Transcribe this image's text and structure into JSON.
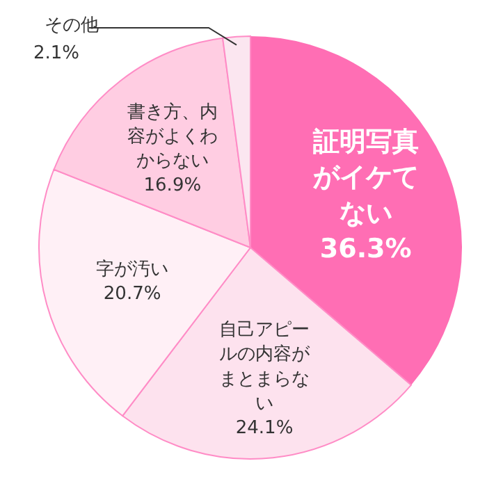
{
  "chart_data": {
    "type": "pie",
    "categories": [
      "証明写真がイケてない",
      "自己アピールの内容がまとまらない",
      "字が汚い",
      "書き方、内容がよくわからない",
      "その他"
    ],
    "values": [
      36.3,
      24.1,
      20.7,
      16.9,
      2.1
    ],
    "value_labels": [
      "36.3%",
      "24.1%",
      "20.7%",
      "16.9%",
      "2.1%"
    ],
    "colors": [
      "#ff6eb4",
      "#fde2ee",
      "#fff0f6",
      "#ffcde2",
      "#fbe6f0"
    ]
  }
}
